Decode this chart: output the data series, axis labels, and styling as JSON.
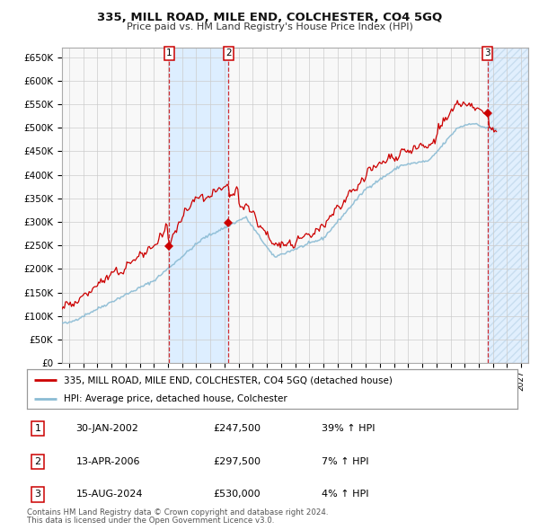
{
  "title": "335, MILL ROAD, MILE END, COLCHESTER, CO4 5GQ",
  "subtitle": "Price paid vs. HM Land Registry's House Price Index (HPI)",
  "legend_line1": "335, MILL ROAD, MILE END, COLCHESTER, CO4 5GQ (detached house)",
  "legend_line2": "HPI: Average price, detached house, Colchester",
  "footer1": "Contains HM Land Registry data © Crown copyright and database right 2024.",
  "footer2": "This data is licensed under the Open Government Licence v3.0.",
  "transactions": [
    {
      "num": 1,
      "date": "30-JAN-2002",
      "price": 247500,
      "pct": "39%",
      "dir": "↑",
      "year": 2002.08
    },
    {
      "num": 2,
      "date": "13-APR-2006",
      "price": 297500,
      "pct": "7%",
      "dir": "↑",
      "year": 2006.28
    },
    {
      "num": 3,
      "date": "15-AUG-2024",
      "price": 530000,
      "pct": "4%",
      "dir": "↑",
      "year": 2024.62
    }
  ],
  "hpi_color": "#8abbd4",
  "price_color": "#cc0000",
  "shade_color": "#ddeeff",
  "vline_color": "#cc0000",
  "grid_color": "#cccccc",
  "bg_color": "#ffffff",
  "ylim": [
    0,
    670000
  ],
  "yticks": [
    0,
    50000,
    100000,
    150000,
    200000,
    250000,
    300000,
    350000,
    400000,
    450000,
    500000,
    550000,
    600000,
    650000
  ],
  "xlim_start": 1994.5,
  "xlim_end": 2027.5
}
